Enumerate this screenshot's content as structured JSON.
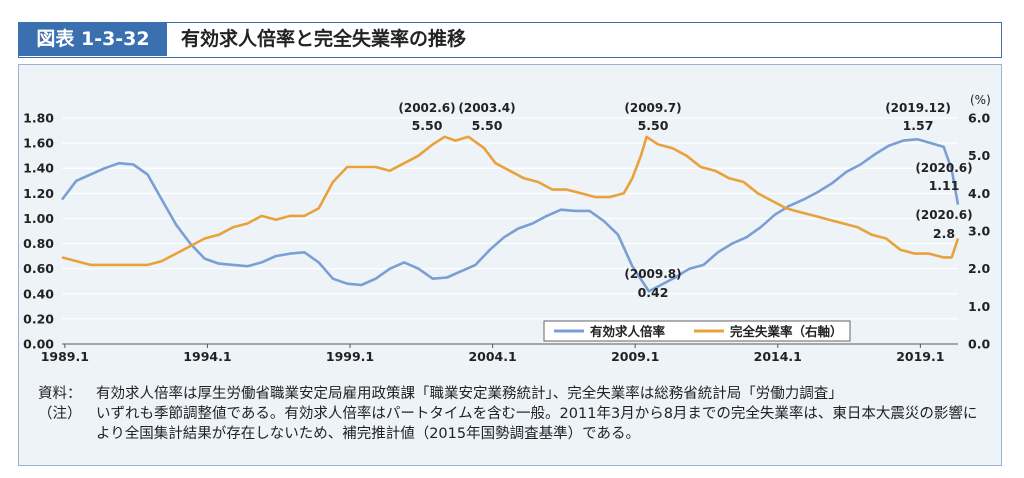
{
  "header": {
    "label": "図表 1-3-32",
    "title": "有効求人倍率と完全失業率の推移"
  },
  "notes": [
    {
      "label": "資料：",
      "text": "有効求人倍率は厚生労働省職業安定局雇用政策課「職業安定業務統計」、完全失業率は総務省統計局「労働力調査」"
    },
    {
      "label": "（注）",
      "text": "いずれも季節調整値である。有効求人倍率はパートタイムを含む一般。2011年3月から8月までの完全失業率は、東日本大震災の影響により全国集計結果が存在しないため、補完推計値（2015年国勢調査基準）である。"
    }
  ],
  "chart_data": {
    "type": "line",
    "x_ticks": [
      "1989.1",
      "1994.1",
      "1999.1",
      "2004.1",
      "2009.1",
      "2014.1",
      "2019.1"
    ],
    "x_range": [
      "1989.1",
      "2020.6"
    ],
    "y_left_ticks": [
      "0.00",
      "0.20",
      "0.40",
      "0.60",
      "0.80",
      "1.00",
      "1.20",
      "1.40",
      "1.60",
      "1.80"
    ],
    "y_right_ticks": [
      "0.0",
      "1.0",
      "2.0",
      "3.0",
      "4.0",
      "5.0",
      "6.0"
    ],
    "y_left_range": [
      0,
      1.8
    ],
    "y_right_range": [
      0,
      6
    ],
    "y_right_unit": "(%)",
    "legend_position": "bottom-right",
    "colors": {
      "jobs": "#7a9fd4",
      "unemp": "#e9a23b",
      "grid": "#ffffff",
      "panel": "#eef3f8",
      "header": "#3a6fb0"
    },
    "series": [
      {
        "name": "有効求人倍率",
        "axis": "left",
        "points": [
          [
            1989.0,
            1.15
          ],
          [
            1989.5,
            1.3
          ],
          [
            1990.0,
            1.35
          ],
          [
            1990.5,
            1.4
          ],
          [
            1991.0,
            1.44
          ],
          [
            1991.5,
            1.43
          ],
          [
            1992.0,
            1.35
          ],
          [
            1992.5,
            1.15
          ],
          [
            1993.0,
            0.95
          ],
          [
            1993.5,
            0.8
          ],
          [
            1994.0,
            0.68
          ],
          [
            1994.5,
            0.64
          ],
          [
            1995.0,
            0.63
          ],
          [
            1995.5,
            0.62
          ],
          [
            1996.0,
            0.65
          ],
          [
            1996.5,
            0.7
          ],
          [
            1997.0,
            0.72
          ],
          [
            1997.5,
            0.73
          ],
          [
            1998.0,
            0.65
          ],
          [
            1998.5,
            0.52
          ],
          [
            1999.0,
            0.48
          ],
          [
            1999.5,
            0.47
          ],
          [
            2000.0,
            0.52
          ],
          [
            2000.5,
            0.6
          ],
          [
            2001.0,
            0.65
          ],
          [
            2001.5,
            0.6
          ],
          [
            2002.0,
            0.52
          ],
          [
            2002.5,
            0.53
          ],
          [
            2003.0,
            0.58
          ],
          [
            2003.5,
            0.63
          ],
          [
            2004.0,
            0.75
          ],
          [
            2004.5,
            0.85
          ],
          [
            2005.0,
            0.92
          ],
          [
            2005.5,
            0.96
          ],
          [
            2006.0,
            1.02
          ],
          [
            2006.5,
            1.07
          ],
          [
            2007.0,
            1.06
          ],
          [
            2007.5,
            1.06
          ],
          [
            2008.0,
            0.98
          ],
          [
            2008.5,
            0.87
          ],
          [
            2009.0,
            0.62
          ],
          [
            2009.58,
            0.42
          ],
          [
            2010.0,
            0.47
          ],
          [
            2010.5,
            0.53
          ],
          [
            2011.0,
            0.6
          ],
          [
            2011.5,
            0.63
          ],
          [
            2012.0,
            0.73
          ],
          [
            2012.5,
            0.8
          ],
          [
            2013.0,
            0.85
          ],
          [
            2013.5,
            0.93
          ],
          [
            2014.0,
            1.03
          ],
          [
            2014.5,
            1.1
          ],
          [
            2015.0,
            1.15
          ],
          [
            2015.5,
            1.21
          ],
          [
            2016.0,
            1.28
          ],
          [
            2016.5,
            1.37
          ],
          [
            2017.0,
            1.43
          ],
          [
            2017.5,
            1.51
          ],
          [
            2018.0,
            1.58
          ],
          [
            2018.5,
            1.62
          ],
          [
            2019.0,
            1.63
          ],
          [
            2019.92,
            1.57
          ],
          [
            2020.2,
            1.39
          ],
          [
            2020.42,
            1.11
          ]
        ],
        "annotations": [
          {
            "date": "(2009.8)",
            "value": "0.42"
          },
          {
            "date": "(2019.12)",
            "value": "1.57"
          },
          {
            "date": "(2020.6)",
            "value": "1.11"
          }
        ]
      },
      {
        "name": "完全失業率（右軸）",
        "axis": "right",
        "points": [
          [
            1989.0,
            2.3
          ],
          [
            1989.5,
            2.2
          ],
          [
            1990.0,
            2.1
          ],
          [
            1990.5,
            2.1
          ],
          [
            1991.0,
            2.1
          ],
          [
            1991.5,
            2.1
          ],
          [
            1992.0,
            2.1
          ],
          [
            1992.5,
            2.2
          ],
          [
            1993.0,
            2.4
          ],
          [
            1993.5,
            2.6
          ],
          [
            1994.0,
            2.8
          ],
          [
            1994.5,
            2.9
          ],
          [
            1995.0,
            3.1
          ],
          [
            1995.5,
            3.2
          ],
          [
            1996.0,
            3.4
          ],
          [
            1996.5,
            3.3
          ],
          [
            1997.0,
            3.4
          ],
          [
            1997.5,
            3.4
          ],
          [
            1998.0,
            3.6
          ],
          [
            1998.5,
            4.3
          ],
          [
            1999.0,
            4.7
          ],
          [
            1999.5,
            4.7
          ],
          [
            2000.0,
            4.7
          ],
          [
            2000.5,
            4.6
          ],
          [
            2001.0,
            4.8
          ],
          [
            2001.5,
            5.0
          ],
          [
            2002.0,
            5.3
          ],
          [
            2002.42,
            5.5
          ],
          [
            2002.8,
            5.4
          ],
          [
            2003.25,
            5.5
          ],
          [
            2003.8,
            5.2
          ],
          [
            2004.2,
            4.8
          ],
          [
            2004.7,
            4.6
          ],
          [
            2005.2,
            4.4
          ],
          [
            2005.7,
            4.3
          ],
          [
            2006.2,
            4.1
          ],
          [
            2006.7,
            4.1
          ],
          [
            2007.2,
            4.0
          ],
          [
            2007.7,
            3.9
          ],
          [
            2008.2,
            3.9
          ],
          [
            2008.7,
            4.0
          ],
          [
            2009.0,
            4.4
          ],
          [
            2009.3,
            5.0
          ],
          [
            2009.5,
            5.5
          ],
          [
            2009.9,
            5.3
          ],
          [
            2010.4,
            5.2
          ],
          [
            2010.9,
            5.0
          ],
          [
            2011.4,
            4.7
          ],
          [
            2011.9,
            4.6
          ],
          [
            2012.4,
            4.4
          ],
          [
            2012.9,
            4.3
          ],
          [
            2013.4,
            4.0
          ],
          [
            2013.9,
            3.8
          ],
          [
            2014.4,
            3.6
          ],
          [
            2014.9,
            3.5
          ],
          [
            2015.4,
            3.4
          ],
          [
            2015.9,
            3.3
          ],
          [
            2016.4,
            3.2
          ],
          [
            2016.9,
            3.1
          ],
          [
            2017.4,
            2.9
          ],
          [
            2017.9,
            2.8
          ],
          [
            2018.4,
            2.5
          ],
          [
            2018.9,
            2.4
          ],
          [
            2019.4,
            2.4
          ],
          [
            2019.9,
            2.3
          ],
          [
            2020.2,
            2.3
          ],
          [
            2020.42,
            2.8
          ]
        ],
        "annotations": [
          {
            "date": "(2002.6)",
            "value": "5.50"
          },
          {
            "date": "(2003.4)",
            "value": "5.50"
          },
          {
            "date": "(2009.7)",
            "value": "5.50"
          },
          {
            "date": "(2020.6)",
            "value": "2.8"
          }
        ]
      }
    ]
  }
}
